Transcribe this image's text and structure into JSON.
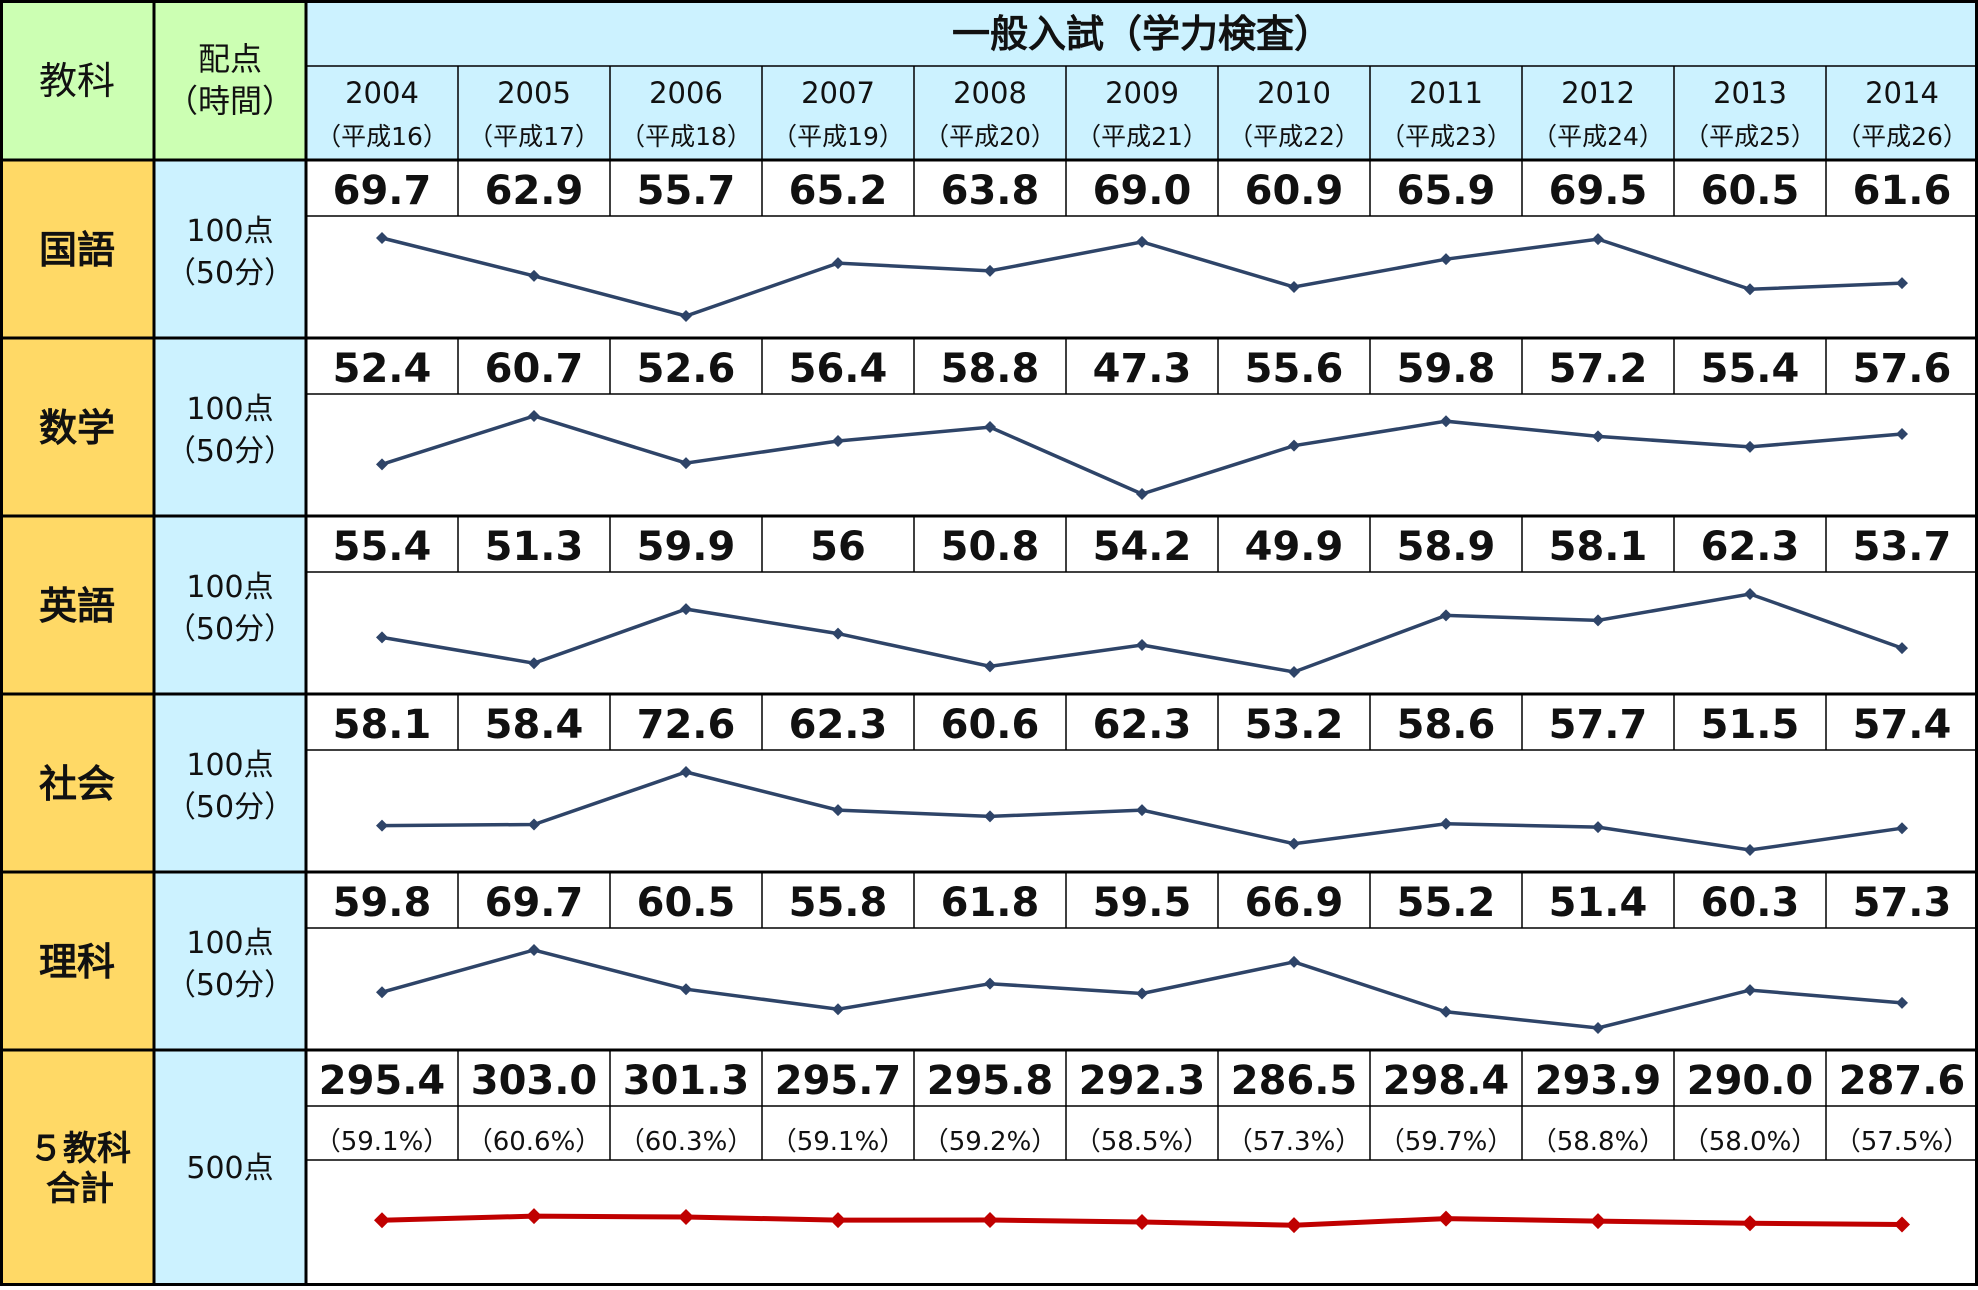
{
  "header": {
    "subject_label": "教科",
    "points_label_1": "配点",
    "points_label_2": "（時間）",
    "title": "一般入試（学力検査）"
  },
  "years": [
    {
      "year": "2004",
      "era": "（平成16）"
    },
    {
      "year": "2005",
      "era": "（平成17）"
    },
    {
      "year": "2006",
      "era": "（平成18）"
    },
    {
      "year": "2007",
      "era": "（平成19）"
    },
    {
      "year": "2008",
      "era": "（平成20）"
    },
    {
      "year": "2009",
      "era": "（平成21）"
    },
    {
      "year": "2010",
      "era": "（平成22）"
    },
    {
      "year": "2011",
      "era": "（平成23）"
    },
    {
      "year": "2012",
      "era": "（平成24）"
    },
    {
      "year": "2013",
      "era": "（平成25）"
    },
    {
      "year": "2014",
      "era": "（平成26）"
    }
  ],
  "subjects": [
    {
      "name": "国語",
      "points": "100点",
      "time": "（50分）",
      "values": [
        "69.7",
        "62.9",
        "55.7",
        "65.2",
        "63.8",
        "69.0",
        "60.9",
        "65.9",
        "69.5",
        "60.5",
        "61.6"
      ]
    },
    {
      "name": "数学",
      "points": "100点",
      "time": "（50分）",
      "values": [
        "52.4",
        "60.7",
        "52.6",
        "56.4",
        "58.8",
        "47.3",
        "55.6",
        "59.8",
        "57.2",
        "55.4",
        "57.6"
      ]
    },
    {
      "name": "英語",
      "points": "100点",
      "time": "（50分）",
      "values": [
        "55.4",
        "51.3",
        "59.9",
        "56",
        "50.8",
        "54.2",
        "49.9",
        "58.9",
        "58.1",
        "62.3",
        "53.7"
      ]
    },
    {
      "name": "社会",
      "points": "100点",
      "time": "（50分）",
      "values": [
        "58.1",
        "58.4",
        "72.6",
        "62.3",
        "60.6",
        "62.3",
        "53.2",
        "58.6",
        "57.7",
        "51.5",
        "57.4"
      ]
    },
    {
      "name": "理科",
      "points": "100点",
      "time": "（50分）",
      "values": [
        "59.8",
        "69.7",
        "60.5",
        "55.8",
        "61.8",
        "59.5",
        "66.9",
        "55.2",
        "51.4",
        "60.3",
        "57.3"
      ]
    }
  ],
  "total": {
    "name_line1": "５教科",
    "name_line2": "合計",
    "points": "500点",
    "values": [
      "295.4",
      "303.0",
      "301.3",
      "295.7",
      "295.8",
      "292.3",
      "286.5",
      "298.4",
      "293.9",
      "290.0",
      "287.6"
    ],
    "percents": [
      "（59.1%）",
      "（60.6%）",
      "（60.3%）",
      "（59.1%）",
      "（59.2%）",
      "（58.5%）",
      "（57.3%）",
      "（59.7%）",
      "（58.8%）",
      "（58.0%）",
      "（57.5%）"
    ]
  },
  "colors": {
    "header_blue": "#CCF2FF",
    "subject_green": "#CCFFB3",
    "subject_yellow": "#FFD966",
    "points_blue": "#CCF2FF",
    "line_navy": "#2E4468",
    "line_red": "#C00000",
    "border": "#000000"
  },
  "chart_data": [
    {
      "type": "line",
      "name": "国語",
      "x": [
        2004,
        2005,
        2006,
        2007,
        2008,
        2009,
        2010,
        2011,
        2012,
        2013,
        2014
      ],
      "y": [
        69.7,
        62.9,
        55.7,
        65.2,
        63.8,
        69.0,
        60.9,
        65.9,
        69.5,
        60.5,
        61.6
      ]
    },
    {
      "type": "line",
      "name": "数学",
      "x": [
        2004,
        2005,
        2006,
        2007,
        2008,
        2009,
        2010,
        2011,
        2012,
        2013,
        2014
      ],
      "y": [
        52.4,
        60.7,
        52.6,
        56.4,
        58.8,
        47.3,
        55.6,
        59.8,
        57.2,
        55.4,
        57.6
      ]
    },
    {
      "type": "line",
      "name": "英語",
      "x": [
        2004,
        2005,
        2006,
        2007,
        2008,
        2009,
        2010,
        2011,
        2012,
        2013,
        2014
      ],
      "y": [
        55.4,
        51.3,
        59.9,
        56,
        50.8,
        54.2,
        49.9,
        58.9,
        58.1,
        62.3,
        53.7
      ]
    },
    {
      "type": "line",
      "name": "社会",
      "x": [
        2004,
        2005,
        2006,
        2007,
        2008,
        2009,
        2010,
        2011,
        2012,
        2013,
        2014
      ],
      "y": [
        58.1,
        58.4,
        72.6,
        62.3,
        60.6,
        62.3,
        53.2,
        58.6,
        57.7,
        51.5,
        57.4
      ]
    },
    {
      "type": "line",
      "name": "理科",
      "x": [
        2004,
        2005,
        2006,
        2007,
        2008,
        2009,
        2010,
        2011,
        2012,
        2013,
        2014
      ],
      "y": [
        59.8,
        69.7,
        60.5,
        55.8,
        61.8,
        59.5,
        66.9,
        55.2,
        51.4,
        60.3,
        57.3
      ]
    },
    {
      "type": "line",
      "name": "５教科合計",
      "x": [
        2004,
        2005,
        2006,
        2007,
        2008,
        2009,
        2010,
        2011,
        2012,
        2013,
        2014
      ],
      "y": [
        295.4,
        303.0,
        301.3,
        295.7,
        295.8,
        292.3,
        286.5,
        298.4,
        293.9,
        290.0,
        287.6
      ]
    }
  ]
}
